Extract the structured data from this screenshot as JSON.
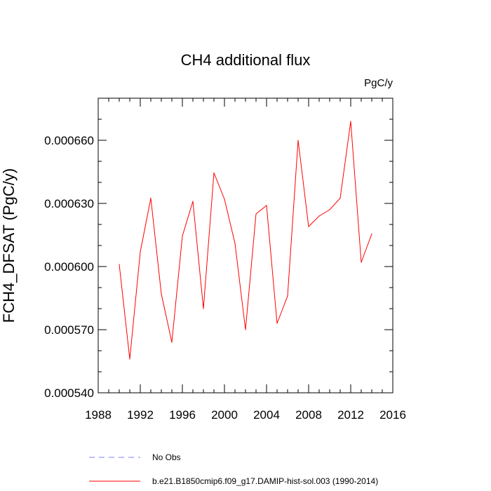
{
  "chart_data": {
    "type": "line",
    "title": "CH4 additional flux",
    "units_label": "PgC/y",
    "ylabel": "FCH4_DFSAT  (PgC/y)",
    "xlabel": "",
    "xlim": [
      1988,
      2016
    ],
    "ylim": [
      0.00054,
      0.00068
    ],
    "x_ticks": [
      1988,
      1992,
      1996,
      2000,
      2004,
      2008,
      2012,
      2016
    ],
    "x_tick_labels": [
      "1988",
      "1992",
      "1996",
      "2000",
      "2004",
      "2008",
      "2012",
      "2016"
    ],
    "y_ticks": [
      0.00054,
      0.00057,
      0.0006,
      0.00063,
      0.00066
    ],
    "y_tick_labels": [
      "0.000540",
      "0.000570",
      "0.000600",
      "0.000630",
      "0.000660"
    ],
    "grid": false,
    "legend_position": "bottom",
    "series": [
      {
        "name": "b.e21.B1850cmip6.f09_g17.DAMIP-hist-sol.003 (1990-2014)",
        "color": "#ff0000",
        "style": "solid",
        "x": [
          1990,
          1991,
          1992,
          1993,
          1994,
          1995,
          1996,
          1997,
          1998,
          1999,
          2000,
          2001,
          2002,
          2003,
          2004,
          2005,
          2006,
          2007,
          2008,
          2009,
          2010,
          2011,
          2012,
          2013,
          2014
        ],
        "y": [
          0.000601,
          0.000556,
          0.000607,
          0.0006325,
          0.000587,
          0.000564,
          0.0006145,
          0.000631,
          0.00058,
          0.0006445,
          0.000632,
          0.000611,
          0.00057,
          0.000625,
          0.000629,
          0.000573,
          0.000586,
          0.00066,
          0.000619,
          0.000624,
          0.000627,
          0.0006325,
          0.000669,
          0.000602,
          0.0006155
        ]
      },
      {
        "name": "No Obs",
        "color": "#8080ff",
        "style": "dashed",
        "x": [],
        "y": []
      }
    ]
  }
}
